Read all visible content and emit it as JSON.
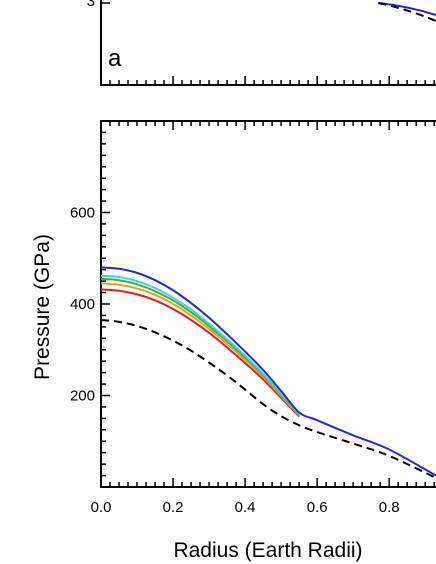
{
  "chart_data": [
    {
      "type": "line",
      "panel_label": "a",
      "ylim_tick_visible": "3",
      "note": "",
      "series": [
        {
          "color": "#1f2bd6",
          "style": "solid",
          "x": [
            0.77,
            0.93
          ],
          "y": [
            3.0,
            2.88
          ]
        },
        {
          "color": "#000000",
          "style": "dashed",
          "x": [
            0.77,
            0.93
          ],
          "y": [
            3.0,
            2.82
          ]
        }
      ]
    },
    {
      "type": "line",
      "xlabel": "Radius (Earth Radii)",
      "ylabel": "Pressure (GPa)",
      "xlim": [
        0.0,
        0.93
      ],
      "ylim": [
        0,
        800
      ],
      "xticks": [
        "0.0",
        "0.2",
        "0.4",
        "0.6",
        "0.8"
      ],
      "xtick_values": [
        0.0,
        0.2,
        0.4,
        0.6,
        0.8
      ],
      "yticks": [
        "200",
        "400",
        "600"
      ],
      "ytick_values": [
        200,
        400,
        600
      ],
      "series": [
        {
          "color": "#1f2bd6",
          "style": "solid",
          "x": [
            0.0,
            0.05,
            0.1,
            0.15,
            0.2,
            0.25,
            0.3,
            0.35,
            0.4,
            0.45,
            0.5,
            0.55,
            0.6,
            0.7,
            0.8,
            0.93
          ],
          "y": [
            480,
            477,
            468,
            452,
            430,
            402,
            370,
            334,
            296,
            256,
            210,
            163,
            146,
            113,
            82,
            25
          ]
        },
        {
          "color": "#3ed6d6",
          "style": "solid",
          "x": [
            0.0,
            0.05,
            0.1,
            0.15,
            0.2,
            0.25,
            0.3,
            0.35,
            0.4,
            0.45,
            0.5,
            0.55
          ],
          "y": [
            462,
            459,
            450,
            435,
            414,
            388,
            357,
            323,
            287,
            248,
            204,
            160
          ]
        },
        {
          "color": "#3cb43c",
          "style": "solid",
          "x": [
            0.0,
            0.05,
            0.1,
            0.15,
            0.2,
            0.25,
            0.3,
            0.35,
            0.4,
            0.45,
            0.5,
            0.55
          ],
          "y": [
            455,
            452,
            443,
            428,
            408,
            382,
            352,
            319,
            283,
            245,
            202,
            158
          ]
        },
        {
          "color": "#e8a21c",
          "style": "solid",
          "x": [
            0.0,
            0.05,
            0.1,
            0.15,
            0.2,
            0.25,
            0.3,
            0.35,
            0.4,
            0.45,
            0.5,
            0.55
          ],
          "y": [
            445,
            442,
            434,
            420,
            400,
            375,
            346,
            313,
            278,
            241,
            199,
            156
          ]
        },
        {
          "color": "#e02020",
          "style": "solid",
          "x": [
            0.0,
            0.05,
            0.1,
            0.15,
            0.2,
            0.25,
            0.3,
            0.35,
            0.4,
            0.45,
            0.5,
            0.55
          ],
          "y": [
            432,
            429,
            421,
            408,
            389,
            365,
            337,
            305,
            271,
            235,
            195,
            154
          ]
        },
        {
          "color": "#000000",
          "style": "dashed",
          "x": [
            0.0,
            0.05,
            0.1,
            0.15,
            0.2,
            0.25,
            0.3,
            0.35,
            0.4,
            0.45,
            0.5,
            0.55,
            0.6,
            0.7,
            0.8,
            0.93
          ],
          "y": [
            365,
            361,
            352,
            338,
            320,
            298,
            272,
            244,
            213,
            181,
            155,
            135,
            120,
            95,
            68,
            20
          ]
        }
      ]
    }
  ]
}
